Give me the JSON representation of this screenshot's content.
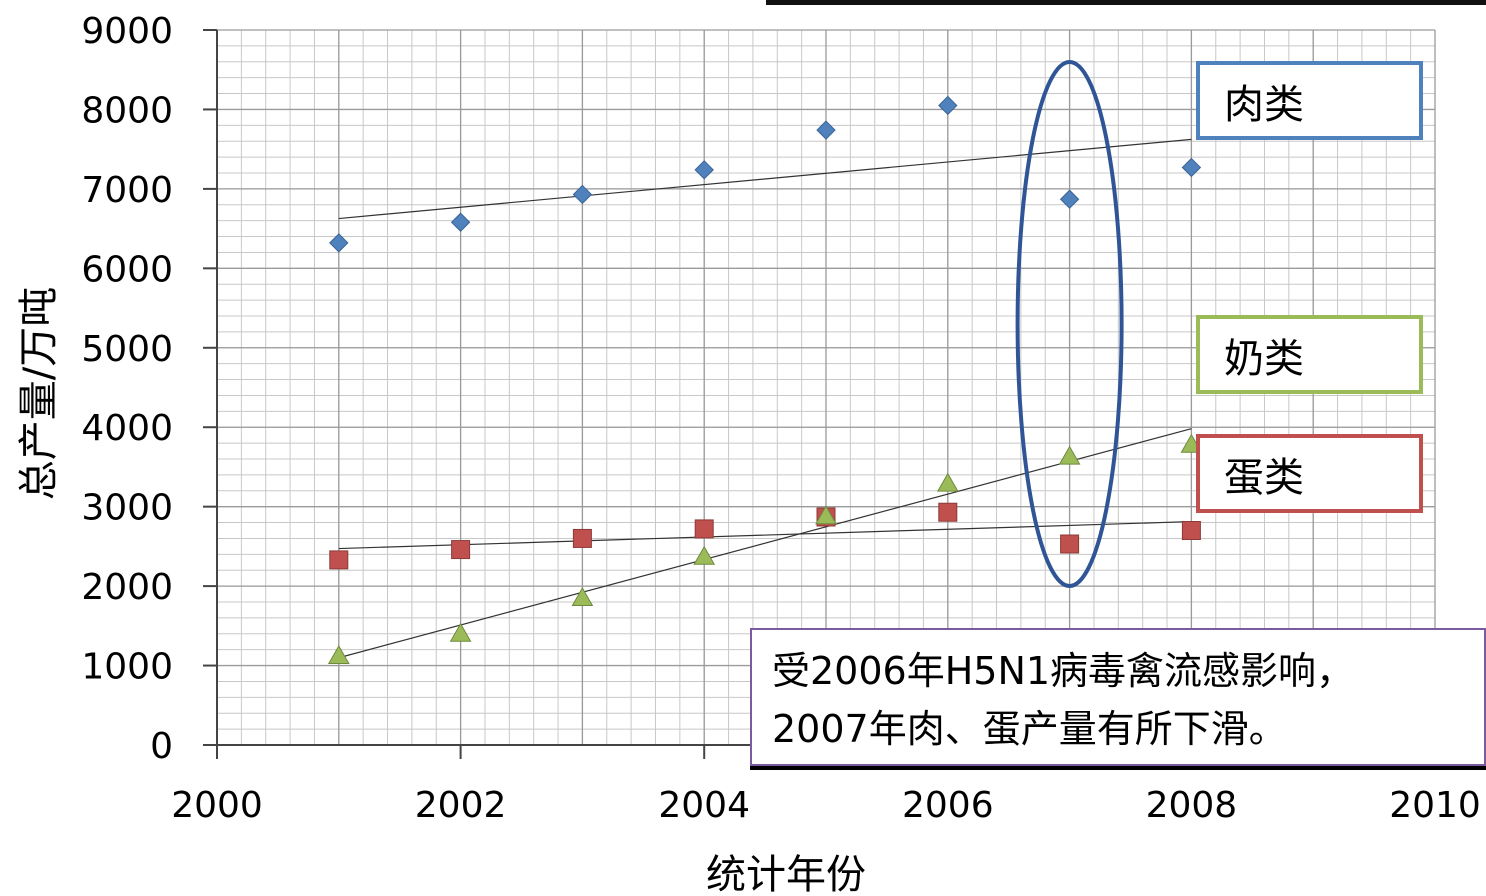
{
  "chart_data": {
    "type": "scatter",
    "xlabel": "统计年份",
    "ylabel": "总产量/万吨",
    "xlim": [
      2000,
      2010
    ],
    "ylim": [
      0,
      9000
    ],
    "x_ticks": [
      "2000",
      "2002",
      "2004",
      "2006",
      "2008",
      "2010"
    ],
    "y_ticks": [
      "0",
      "1000",
      "2000",
      "3000",
      "4000",
      "5000",
      "6000",
      "7000",
      "8000",
      "9000"
    ],
    "grid": true,
    "trendlines": true,
    "series": [
      {
        "name": "肉类",
        "color": "#4f81bd",
        "marker": "diamond",
        "x": [
          2001,
          2002,
          2003,
          2004,
          2005,
          2006,
          2007,
          2008
        ],
        "y": [
          6320,
          6580,
          6930,
          7240,
          7740,
          8050,
          6870,
          7270
        ]
      },
      {
        "name": "蛋类",
        "color": "#c0504d",
        "marker": "square",
        "x": [
          2001,
          2002,
          2003,
          2004,
          2005,
          2006,
          2007,
          2008
        ],
        "y": [
          2330,
          2460,
          2600,
          2720,
          2870,
          2930,
          2530,
          2700
        ]
      },
      {
        "name": "奶类",
        "color": "#9bbb59",
        "marker": "triangle",
        "x": [
          2001,
          2002,
          2003,
          2004,
          2005,
          2006,
          2007,
          2008
        ],
        "y": [
          1120,
          1400,
          1850,
          2370,
          2880,
          3290,
          3630,
          3780
        ]
      }
    ],
    "annotation": {
      "lines": [
        "受2006年H5N1病毒禽流感影响，",
        "2007年肉、蛋产量有所下滑。"
      ],
      "highlight_year": 2007
    }
  },
  "legend": [
    {
      "label": "肉类",
      "color": "#4f81bd"
    },
    {
      "label": "奶类",
      "color": "#9bbb59"
    },
    {
      "label": "蛋类",
      "color": "#c0504d"
    }
  ],
  "colors": {
    "highlight_ellipse": "#2f5597",
    "annotation_border": "#7b5aa0",
    "grid": "#c8c8c8",
    "trendline": "#333333"
  }
}
